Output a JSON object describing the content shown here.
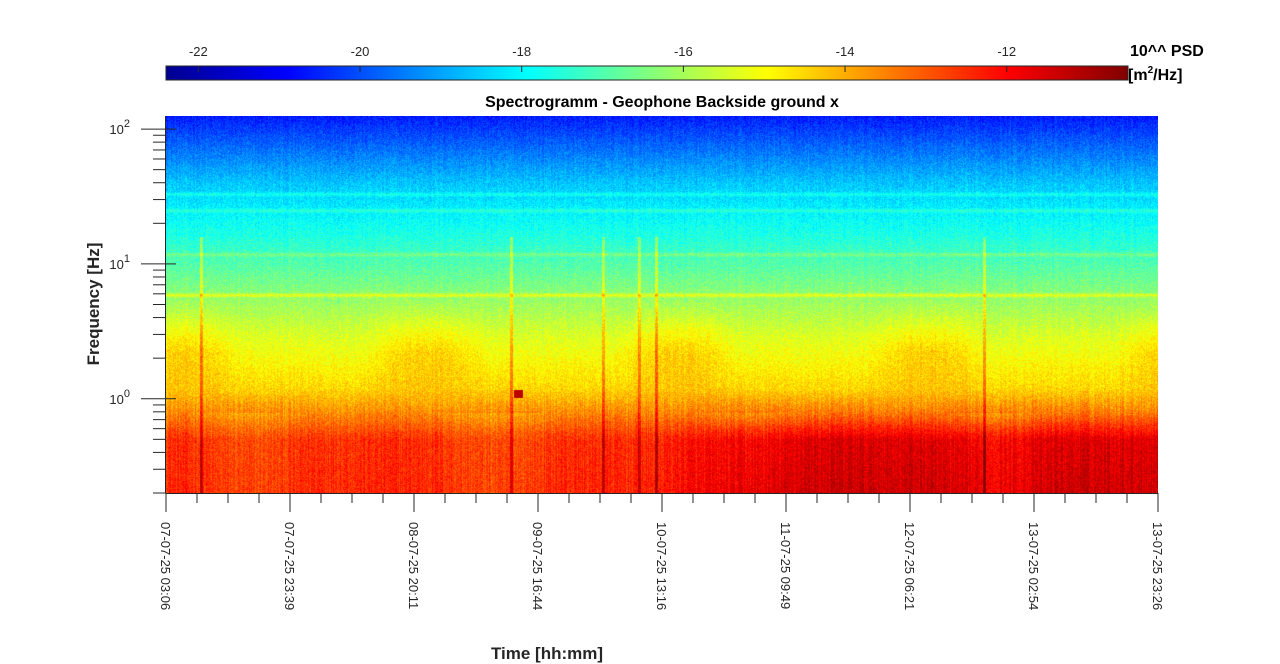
{
  "chart_data": {
    "type": "heatmap",
    "title": "Spectrogramm - Geophone Backside ground x",
    "xlabel": "Time [hh:mm]",
    "ylabel": "Frequency [Hz]",
    "yscale": "log",
    "colormap": "jet",
    "x_ticks": [
      "07-07-25 03:06",
      "07-07-25 23:39",
      "08-07-25 20:11",
      "09-07-25 16:44",
      "10-07-25 13:16",
      "11-07-25 09:49",
      "12-07-25 06:21",
      "13-07-25 02:54",
      "13-07-25 23:26"
    ],
    "y_ticks": [
      {
        "base": "10",
        "exp": "0",
        "value": 1
      },
      {
        "base": "10",
        "exp": "1",
        "value": 10
      },
      {
        "base": "10",
        "exp": "2",
        "value": 100
      }
    ],
    "ylim": [
      0.2,
      125
    ],
    "colorbar": {
      "label_line1": "10^^ PSD",
      "label_line2_prefix": "[m",
      "label_line2_sup": "2",
      "label_line2_suffix": "/Hz]",
      "ticks": [
        "-22",
        "-20",
        "-18",
        "-16",
        "-14",
        "-12"
      ],
      "tick_values": [
        -22,
        -20,
        -18,
        -16,
        -14,
        -12
      ],
      "range": [
        -22.4,
        -10.5
      ],
      "placement": "top"
    },
    "psd_profile_log10": [
      {
        "freq_hz": 0.2,
        "quiet": -12.4,
        "busy": -11.4
      },
      {
        "freq_hz": 0.5,
        "quiet": -12.5,
        "busy": -11.6
      },
      {
        "freq_hz": 0.8,
        "quiet": -13.6,
        "busy": -13.4
      },
      {
        "freq_hz": 1.2,
        "quiet": -14.5,
        "busy": -14.5
      },
      {
        "freq_hz": 3.0,
        "quiet": -15.4,
        "busy": -15.4
      },
      {
        "freq_hz": 6.0,
        "quiet": -16.3,
        "busy": -16.3
      },
      {
        "freq_hz": 15.0,
        "quiet": -17.5,
        "busy": -17.5
      },
      {
        "freq_hz": 40.0,
        "quiet": -18.6,
        "busy": -18.6
      },
      {
        "freq_hz": 125.0,
        "quiet": -20.6,
        "busy": -20.6
      }
    ],
    "spectral_lines_hz": [
      5.9,
      11.8,
      25,
      33
    ]
  }
}
